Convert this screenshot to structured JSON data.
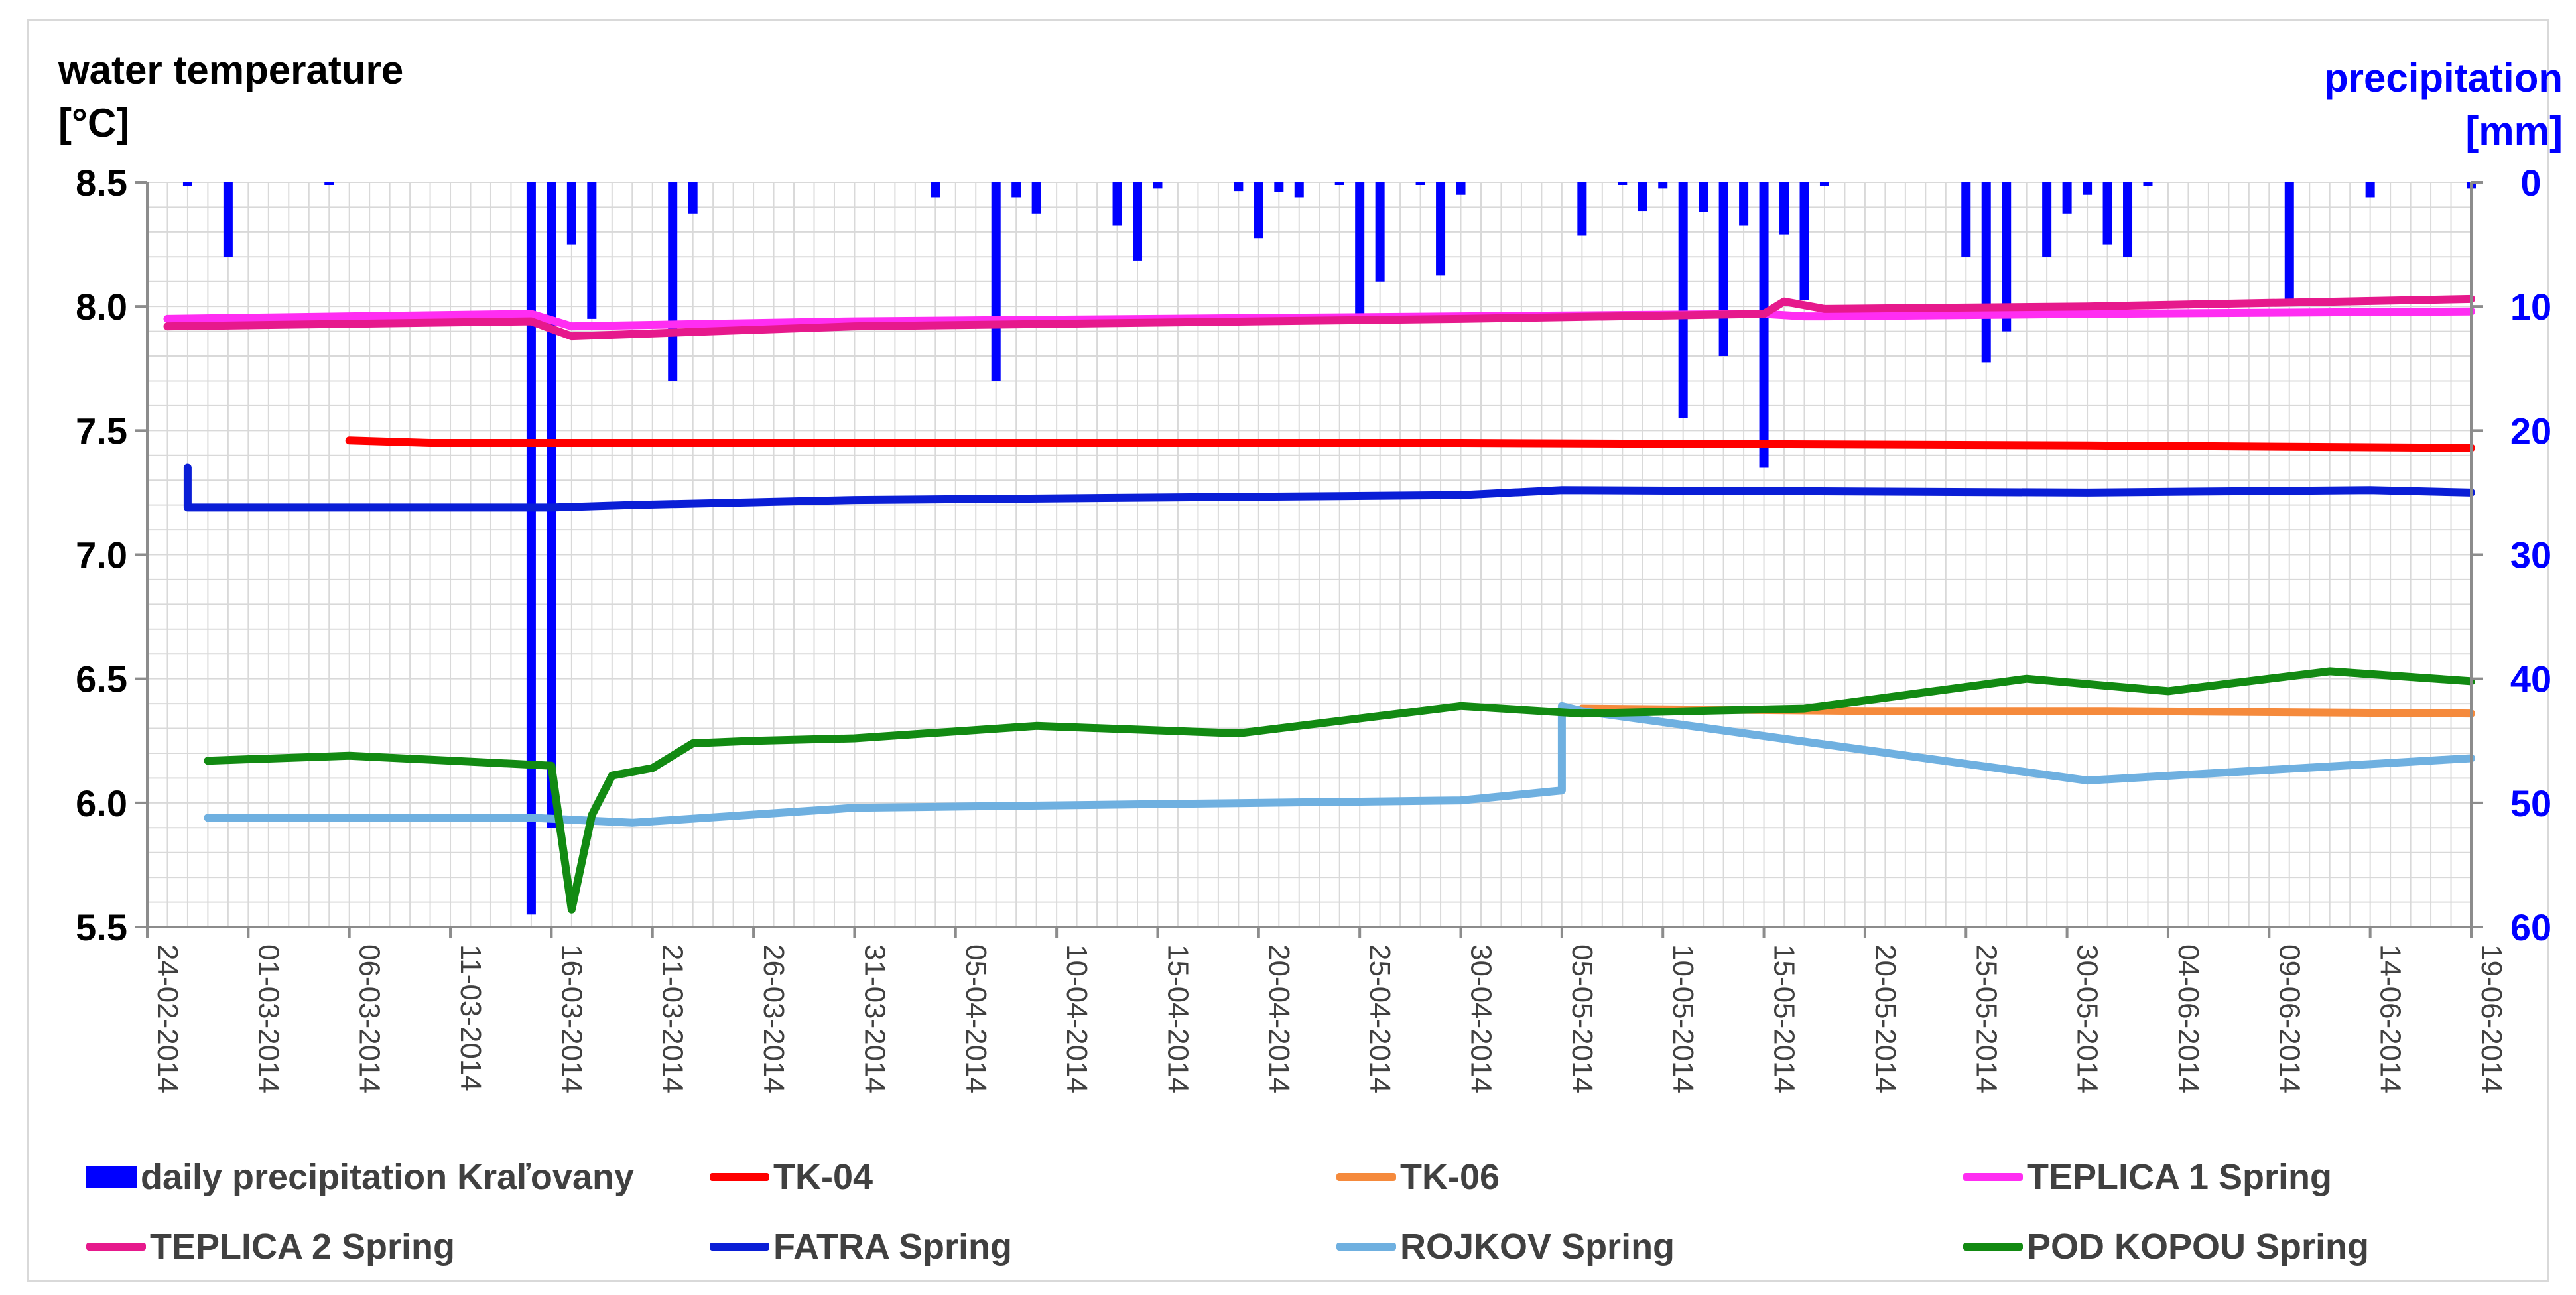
{
  "chart_data": {
    "type": "line",
    "y_left_label": "water temperature\n[°C]",
    "y_right_label": "precipitation\n[mm]",
    "y_left_ticks": [
      "8.5",
      "8.0",
      "7.5",
      "7.0",
      "6.5",
      "6.0",
      "5.5"
    ],
    "y_right_ticks": [
      "0",
      "10",
      "20",
      "30",
      "40",
      "50",
      "60"
    ],
    "ylim_left": [
      5.5,
      8.5
    ],
    "ylim_right": [
      0,
      60
    ],
    "right_axis_inverted": true,
    "x_tick_labels": [
      "24-02-2014",
      "01-03-2014",
      "06-03-2014",
      "11-03-2014",
      "16-03-2014",
      "21-03-2014",
      "26-03-2014",
      "31-03-2014",
      "05-04-2014",
      "10-04-2014",
      "15-04-2014",
      "20-04-2014",
      "25-04-2014",
      "30-04-2014",
      "05-05-2014",
      "10-05-2014",
      "15-05-2014",
      "20-05-2014",
      "25-05-2014",
      "30-05-2014",
      "04-06-2014",
      "09-06-2014",
      "14-06-2014",
      "19-06-2014"
    ],
    "x_start": "24-02-2014",
    "x_end": "19-06-2014",
    "grid": true,
    "legend_position": "bottom",
    "colors": {
      "precip": "#0000ff",
      "tk04": "#ff0000",
      "tk06": "#f58a3c",
      "teplica1": "#ff2df2",
      "teplica2": "#e6198c",
      "fatra": "#0a1ed6",
      "rojkov": "#6fb0e0",
      "podkopou": "#128a12",
      "grid": "#d9d9d9",
      "axis": "#8c8c8c"
    },
    "precipitation": {
      "name": "daily precipitation Kraľovany",
      "dates": [
        "26-02-2014",
        "28-02-2014",
        "05-03-2014",
        "15-03-2014",
        "16-03-2014",
        "17-03-2014",
        "18-03-2014",
        "22-03-2014",
        "23-03-2014",
        "04-04-2014",
        "07-04-2014",
        "08-04-2014",
        "09-04-2014",
        "13-04-2014",
        "14-04-2014",
        "15-04-2014",
        "19-04-2014",
        "20-04-2014",
        "21-04-2014",
        "22-04-2014",
        "24-04-2014",
        "25-04-2014",
        "26-04-2014",
        "28-04-2014",
        "29-04-2014",
        "30-04-2014",
        "06-05-2014",
        "08-05-2014",
        "09-05-2014",
        "10-05-2014",
        "11-05-2014",
        "12-05-2014",
        "13-05-2014",
        "14-05-2014",
        "15-05-2014",
        "16-05-2014",
        "17-05-2014",
        "18-05-2014",
        "25-05-2014",
        "26-05-2014",
        "27-05-2014",
        "29-05-2014",
        "30-05-2014",
        "31-05-2014",
        "01-06-2014",
        "02-06-2014",
        "03-06-2014",
        "10-06-2014",
        "14-06-2014",
        "19-06-2014"
      ],
      "values": [
        0.3,
        6.0,
        0.2,
        59,
        52,
        5,
        11,
        16,
        2.5,
        1.2,
        16,
        1.2,
        2.5,
        3.5,
        6.3,
        0.5,
        0.7,
        4.5,
        0.8,
        1.2,
        0.2,
        11,
        8.0,
        0.2,
        7.5,
        1.0,
        4.3,
        0.2,
        2.3,
        0.5,
        19,
        2.4,
        14,
        3.5,
        23,
        4.2,
        9.5,
        0.3,
        6.0,
        14.5,
        12,
        6.0,
        2.5,
        1.0,
        5.0,
        6.0,
        0.3,
        9.5,
        1.2,
        0.5
      ]
    },
    "series": [
      {
        "name": "TK-04",
        "color": "#ff0000",
        "x": [
          "06-03-2014",
          "10-03-2014",
          "31-03-2014",
          "30-04-2014",
          "31-05-2014",
          "19-06-2014"
        ],
        "y": [
          7.46,
          7.45,
          7.45,
          7.45,
          7.44,
          7.43
        ]
      },
      {
        "name": "TK-06",
        "color": "#f58a3c",
        "x": [
          "06-05-2014",
          "20-05-2014",
          "01-06-2014",
          "19-06-2014"
        ],
        "y": [
          6.38,
          6.37,
          6.37,
          6.36
        ]
      },
      {
        "name": "TEPLICA 1 Spring",
        "color": "#ff2df2",
        "x": [
          "25-02-2014",
          "15-03-2014",
          "17-03-2014",
          "31-03-2014",
          "30-04-2014",
          "15-05-2014",
          "17-05-2014",
          "18-05-2014",
          "31-05-2014",
          "19-06-2014"
        ],
        "y": [
          7.95,
          7.97,
          7.92,
          7.94,
          7.96,
          7.97,
          7.96,
          7.96,
          7.97,
          7.98
        ]
      },
      {
        "name": "TEPLICA 2 Spring",
        "color": "#e6198c",
        "x": [
          "25-02-2014",
          "15-03-2014",
          "17-03-2014",
          "31-03-2014",
          "30-04-2014",
          "15-05-2014",
          "16-05-2014",
          "18-05-2014",
          "31-05-2014",
          "19-06-2014"
        ],
        "y": [
          7.92,
          7.94,
          7.88,
          7.92,
          7.95,
          7.97,
          8.02,
          7.99,
          8.0,
          8.03
        ]
      },
      {
        "name": "FATRA Spring",
        "color": "#0a1ed6",
        "x": [
          "26-02-2014",
          "26-02-2014",
          "01-03-2014",
          "16-03-2014",
          "20-03-2014",
          "31-03-2014",
          "30-04-2014",
          "05-05-2014",
          "31-05-2014",
          "14-06-2014",
          "19-06-2014"
        ],
        "y": [
          7.35,
          7.19,
          7.19,
          7.19,
          7.2,
          7.22,
          7.24,
          7.26,
          7.25,
          7.26,
          7.25
        ]
      },
      {
        "name": "ROJKOV Spring",
        "color": "#6fb0e0",
        "x": [
          "27-02-2014",
          "15-03-2014",
          "20-03-2014",
          "31-03-2014",
          "30-04-2014",
          "05-05-2014",
          "05-05-2014",
          "06-05-2014",
          "31-05-2014",
          "19-06-2014"
        ],
        "y": [
          5.94,
          5.94,
          5.92,
          5.98,
          6.01,
          6.05,
          6.39,
          6.37,
          6.09,
          6.18
        ]
      },
      {
        "name": "POD KOPOU Spring",
        "color": "#128a12",
        "x": [
          "27-02-2014",
          "06-03-2014",
          "16-03-2014",
          "17-03-2014",
          "18-03-2014",
          "19-03-2014",
          "21-03-2014",
          "23-03-2014",
          "26-03-2014",
          "31-03-2014",
          "09-04-2014",
          "19-04-2014",
          "30-04-2014",
          "06-05-2014",
          "17-05-2014",
          "28-05-2014",
          "04-06-2014",
          "12-06-2014",
          "19-06-2014"
        ],
        "y": [
          6.17,
          6.19,
          6.15,
          5.57,
          5.95,
          6.11,
          6.14,
          6.24,
          6.25,
          6.26,
          6.31,
          6.28,
          6.39,
          6.36,
          6.38,
          6.5,
          6.45,
          6.53,
          6.49
        ]
      }
    ]
  }
}
